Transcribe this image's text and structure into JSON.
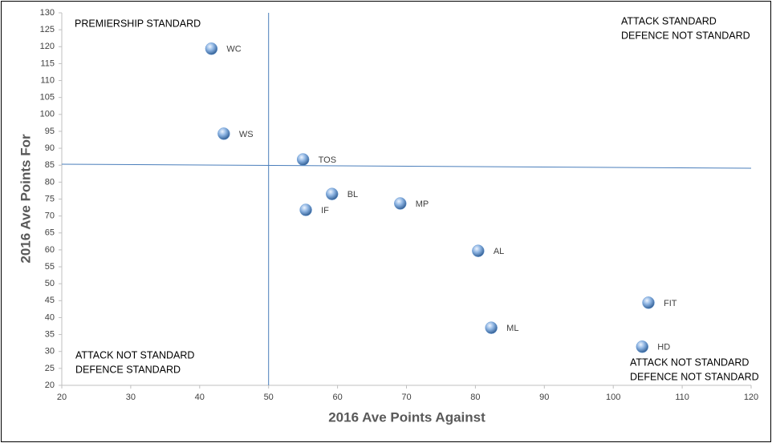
{
  "chart_data": {
    "type": "scatter",
    "x_label": "2016 Ave Points Against",
    "y_label": "2016 Ave Points For",
    "labels": [
      "WC",
      "WS",
      "TOS",
      "BL",
      "IF",
      "MP",
      "AL",
      "FIT",
      "ML",
      "HD"
    ],
    "x": [
      41.7,
      43.5,
      55.0,
      59.2,
      55.4,
      69.1,
      80.4,
      105.1,
      82.3,
      104.2
    ],
    "values": [
      119.4,
      94.3,
      86.7,
      76.5,
      71.8,
      73.7,
      59.7,
      44.4,
      37.0,
      31.4
    ],
    "color": "#6f9fd8",
    "xlim": [
      20,
      120
    ],
    "xticks": [
      20,
      30,
      40,
      50,
      60,
      70,
      80,
      90,
      100,
      110,
      120
    ],
    "ylim": [
      20,
      130
    ],
    "yticks": [
      20,
      25,
      30,
      35,
      40,
      45,
      50,
      55,
      60,
      65,
      70,
      75,
      80,
      85,
      90,
      95,
      100,
      105,
      110,
      115,
      120,
      125,
      130
    ],
    "reference_lines": [
      {
        "x": [
          50,
          50
        ],
        "y": [
          20,
          130
        ]
      },
      {
        "x": [
          20,
          120
        ],
        "y": [
          85.3,
          84.1
        ]
      }
    ],
    "reference_color": "#4a7ebb",
    "annotations": [
      {
        "lines": [
          "PREMIERSHIP STANDARD"
        ]
      },
      {
        "lines": [
          "ATTACK STANDARD",
          "DEFENCE NOT STANDARD"
        ]
      },
      {
        "lines": [
          "ATTACK NOT STANDARD",
          "DEFENCE STANDARD"
        ]
      },
      {
        "lines": [
          "ATTACK NOT STANDARD",
          "DEFENCE NOT STANDARD"
        ]
      }
    ]
  }
}
